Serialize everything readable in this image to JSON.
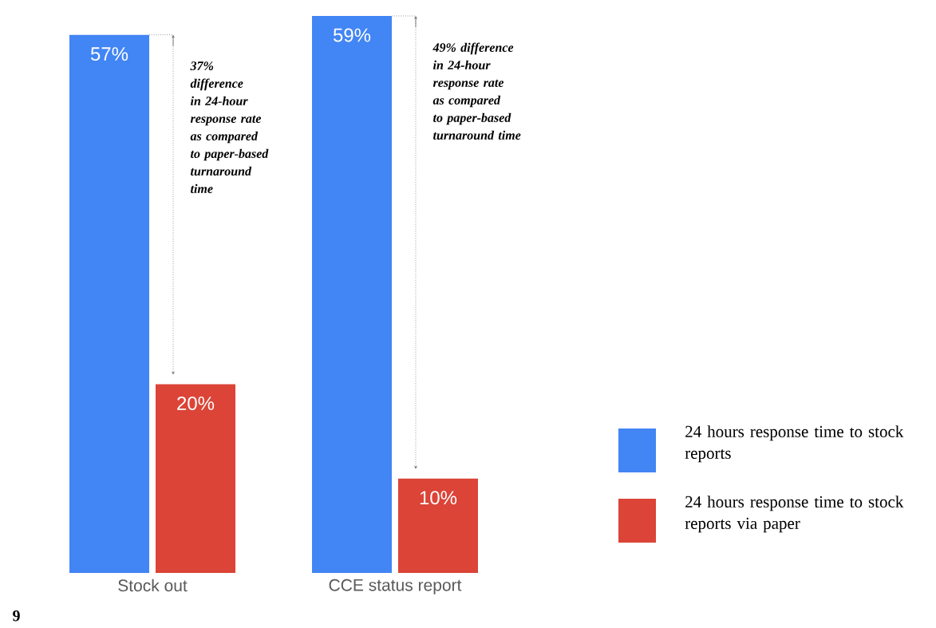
{
  "chart_data": {
    "type": "bar",
    "categories": [
      "Stock out",
      "CCE status report"
    ],
    "series": [
      {
        "name": "24 hours response time to stock reports",
        "color": "#4285f4",
        "values": [
          57,
          59
        ],
        "value_labels": [
          "57%",
          "59%"
        ]
      },
      {
        "name": "24 hours response time to stock reports via paper",
        "color": "#db4437",
        "values": [
          20,
          10
        ],
        "value_labels": [
          "20%",
          "10%"
        ]
      }
    ],
    "annotations": [
      "37% difference in 24-hour response rate as compared to paper-based turnaround time",
      "49% difference in 24-hour response rate as compared to paper-based turnaround time",
      "9"
    ],
    "legend": "bottom right"
  }
}
